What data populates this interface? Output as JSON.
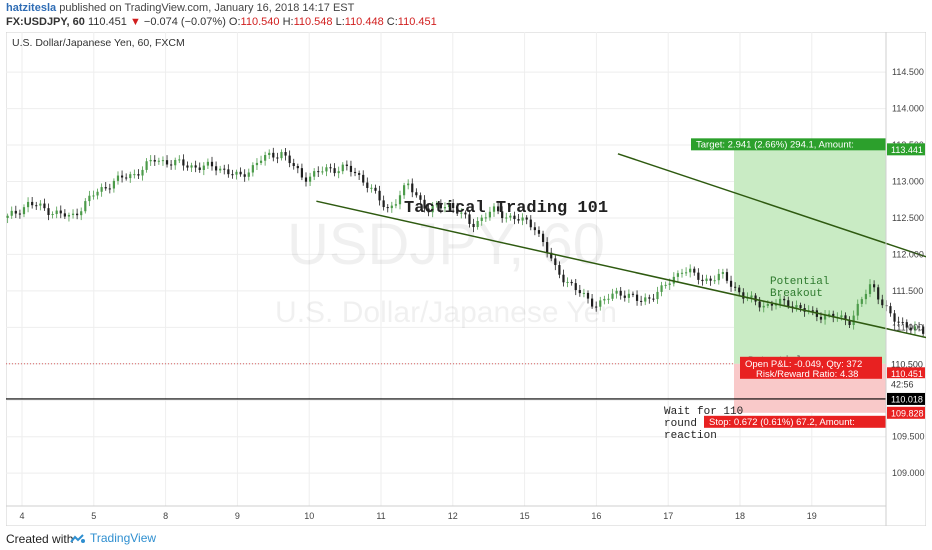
{
  "header": {
    "author": "hatzitesla",
    "published": "published on TradingView.com, January 16, 2018 14:17 EST",
    "symbol": "FX:USDJPY, 60",
    "last": "110.451",
    "change": "−0.074 (−0.07%)",
    "ohlc": {
      "o": "110.540",
      "h": "110.548",
      "l": "110.448",
      "c": "110.451"
    }
  },
  "chart_data": {
    "type": "candlestick",
    "instrument_label": "U.S. Dollar/Japanese Yen, 60, FXCM",
    "watermark_symbol": "USDJPY, 60",
    "watermark_name": "U.S. Dollar/Japanese Yen",
    "y_ticks": [
      "114.500",
      "114.000",
      "113.500",
      "113.000",
      "112.500",
      "112.000",
      "111.500",
      "111.000",
      "110.500",
      "110.000",
      "109.500",
      "109.000"
    ],
    "x_ticks": [
      "4",
      "5",
      "8",
      "9",
      "10",
      "11",
      "12",
      "15",
      "16",
      "17",
      "18",
      "19"
    ],
    "ylim": [
      108.55,
      115.05
    ],
    "close_path": [
      [
        0,
        112.5
      ],
      [
        1,
        112.7
      ],
      [
        2,
        112.6
      ],
      [
        3,
        112.5
      ],
      [
        4,
        112.8
      ],
      [
        5,
        113.0
      ],
      [
        6,
        113.1
      ],
      [
        7,
        113.3
      ],
      [
        8,
        113.25
      ],
      [
        9,
        113.2
      ],
      [
        10,
        113.2
      ],
      [
        11,
        113.05
      ],
      [
        12,
        113.3
      ],
      [
        13,
        113.4
      ],
      [
        14,
        113.05
      ],
      [
        15,
        113.15
      ],
      [
        16,
        113.2
      ],
      [
        17,
        113.0
      ],
      [
        18,
        112.6
      ],
      [
        19,
        112.95
      ],
      [
        20,
        112.6
      ],
      [
        21,
        112.7
      ],
      [
        22,
        112.4
      ],
      [
        23,
        112.6
      ],
      [
        24,
        112.5
      ],
      [
        25,
        112.4
      ],
      [
        26,
        111.8
      ],
      [
        27,
        111.5
      ],
      [
        28,
        111.3
      ],
      [
        29,
        111.5
      ],
      [
        30,
        111.35
      ],
      [
        31,
        111.5
      ],
      [
        32,
        111.8
      ],
      [
        33,
        111.65
      ],
      [
        34,
        111.7
      ],
      [
        35,
        111.4
      ],
      [
        36,
        111.3
      ],
      [
        37,
        111.35
      ],
      [
        38,
        111.2
      ],
      [
        39,
        111.15
      ],
      [
        40,
        111.1
      ],
      [
        41,
        111.6
      ],
      [
        42,
        111.1
      ],
      [
        43,
        111.0
      ],
      [
        44,
        110.8
      ],
      [
        45,
        110.7
      ],
      [
        46,
        110.65
      ],
      [
        47,
        110.5
      ],
      [
        48,
        110.45
      ],
      [
        49,
        110.55
      ],
      [
        50,
        110.7
      ],
      [
        51,
        110.85
      ],
      [
        52,
        110.8
      ],
      [
        53,
        110.65
      ],
      [
        54,
        110.55
      ],
      [
        55,
        110.6
      ],
      [
        56,
        110.7
      ],
      [
        57,
        110.6
      ],
      [
        58,
        110.451
      ]
    ],
    "channel": {
      "upper": [
        [
          8.3,
          113.38
        ],
        [
          16.9,
          110.55
        ]
      ],
      "lower": [
        [
          4.1,
          112.73
        ],
        [
          16.5,
          110.0
        ]
      ]
    },
    "support_level": 110.018,
    "forecast_path": [
      [
        16.6,
        110.9
      ],
      [
        17.3,
        110.0
      ],
      [
        17.75,
        110.45
      ],
      [
        18.55,
        111.4
      ]
    ],
    "annotations": {
      "title_text": "Tactical Trading 101",
      "breakout": [
        "Potential",
        "Breakout"
      ],
      "wait": [
        "Wait for 110",
        "round level",
        "reaction"
      ],
      "potential_short": "Potential"
    },
    "position": {
      "entry": 110.5,
      "target": 113.441,
      "stop": 109.828,
      "target_label": "Target: 2.941 (2.66%) 294.1, Amount:",
      "stop_label": "Stop: 0.672 (0.61%) 67.2, Amount:",
      "pnl_label": "Open P&L: -0.049, Qty: 372",
      "rr_label": "Risk/Reward Ratio: 4.38"
    },
    "price_tags": {
      "target": "113.441",
      "entry": "110.500",
      "last": "110.451",
      "timer": "42:56",
      "support": "110.018",
      "stop": "109.828"
    },
    "colors": {
      "up": "#4c9b4a",
      "down": "#1e1e1e",
      "channel": "#2e5a10",
      "target_zone": "#c9ebc4",
      "stop_zone": "#f9c9c9",
      "target_tag": "#2ca02c",
      "stop_tag": "#e82121",
      "forecast": "#5b8fd3"
    }
  },
  "footer": {
    "created_with": "Created with",
    "brand": "TradingView"
  }
}
